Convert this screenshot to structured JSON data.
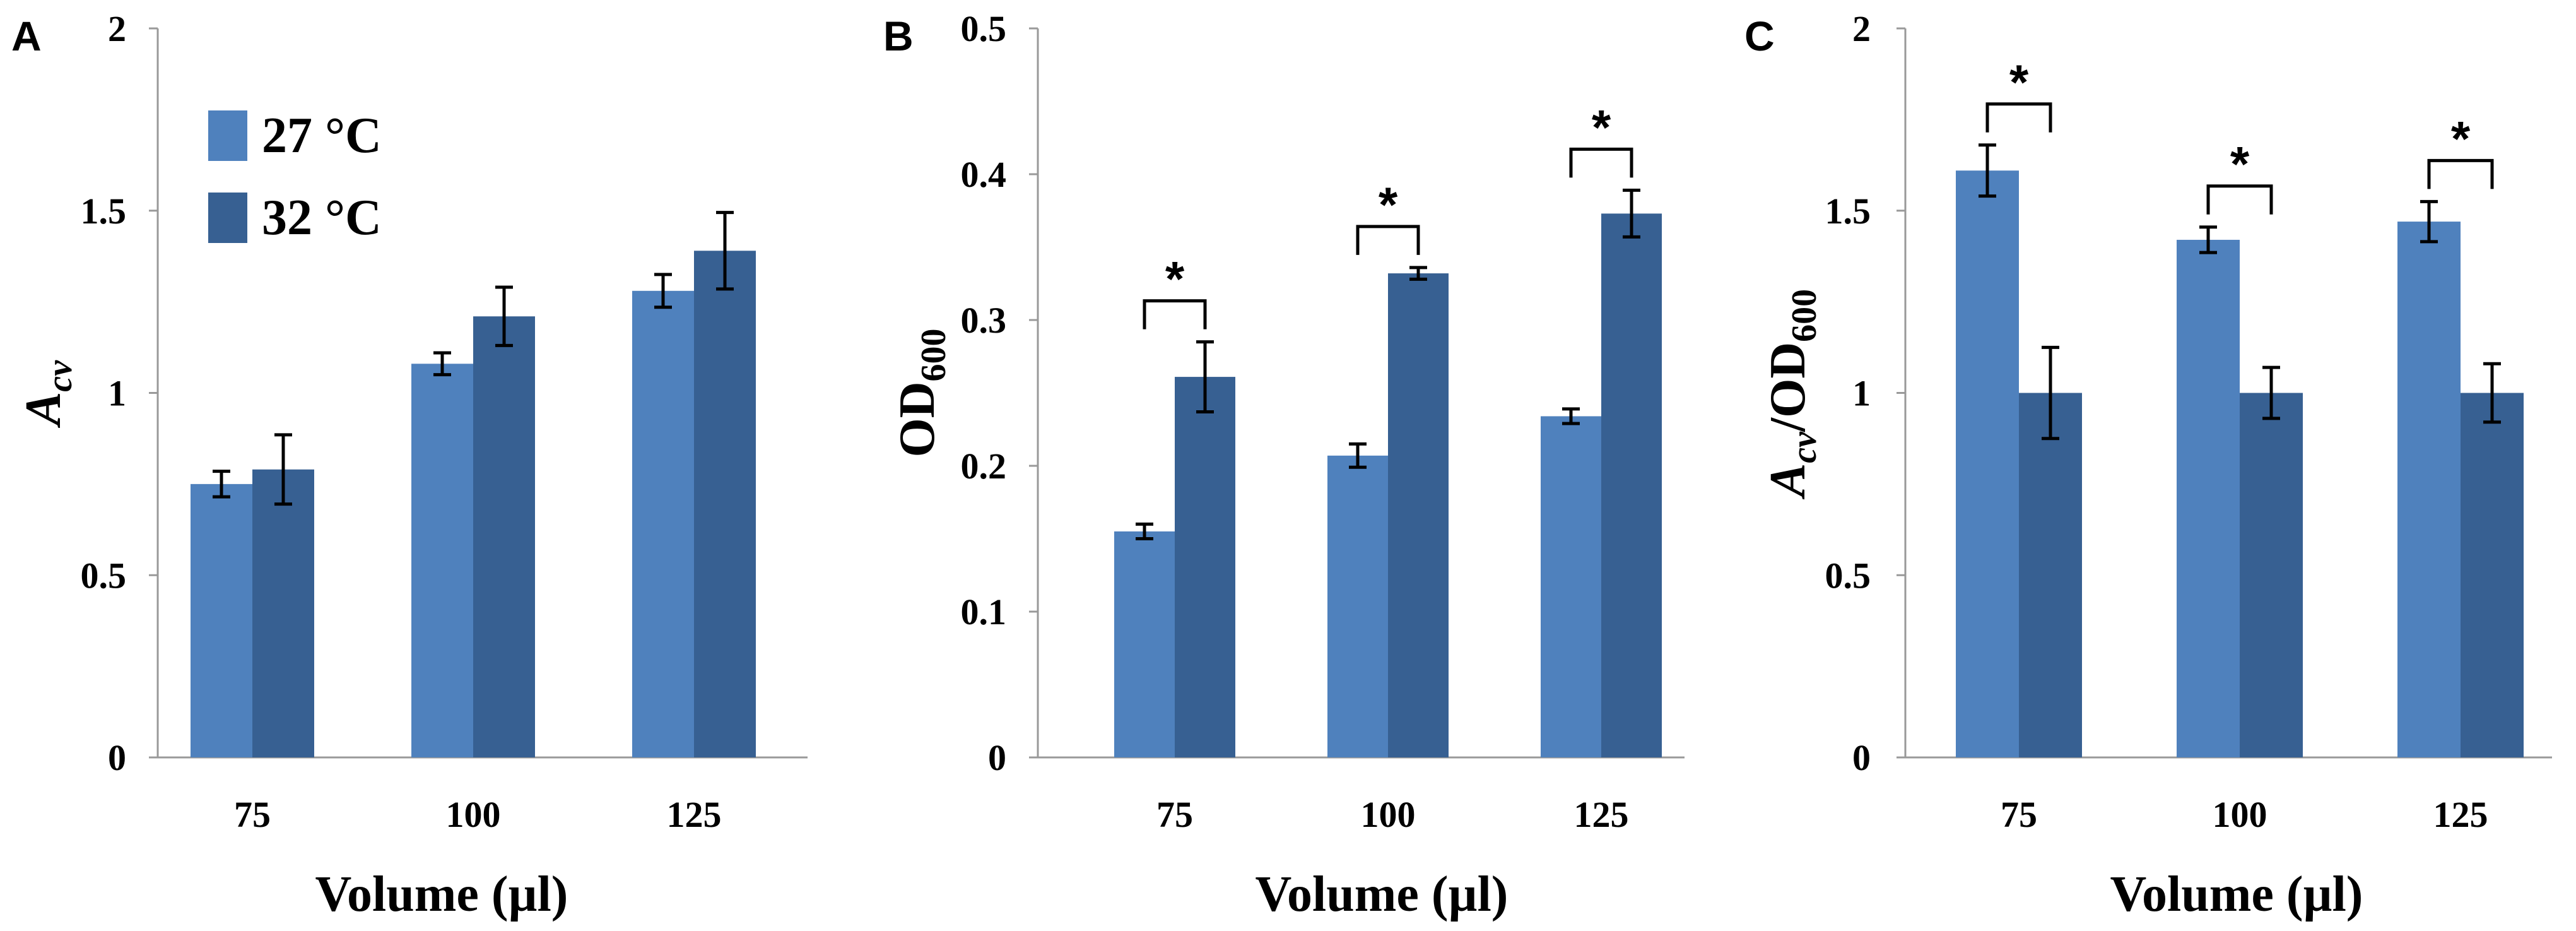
{
  "colors": {
    "series_27": "#4F81BD",
    "series_32": "#376092"
  },
  "legend": {
    "items": [
      "27 °C",
      "32 °C"
    ]
  },
  "chart_data": [
    {
      "panel_letter": "A",
      "type": "bar",
      "categories": [
        "75",
        "100",
        "125"
      ],
      "xlabel": "Volume (µl)",
      "ylabel": {
        "main": "A",
        "sub": "cv",
        "rest": ""
      },
      "ylim": [
        0,
        2
      ],
      "yticks": [
        0,
        0.5,
        1,
        1.5,
        2
      ],
      "ytick_labels": [
        "0",
        "0.5",
        "1",
        "1.5",
        "2"
      ],
      "series": [
        {
          "name": "27 °C",
          "values": [
            0.75,
            1.08,
            1.28
          ],
          "errors": [
            0.035,
            0.03,
            0.045
          ]
        },
        {
          "name": "32 °C",
          "values": [
            0.79,
            1.21,
            1.39
          ],
          "errors": [
            0.095,
            0.08,
            0.105
          ]
        }
      ],
      "significance": []
    },
    {
      "panel_letter": "B",
      "type": "bar",
      "categories": [
        "75",
        "100",
        "125"
      ],
      "xlabel": "Volume (µl)",
      "ylabel": {
        "main": "OD",
        "sub": "600",
        "rest": ""
      },
      "ylim": [
        0,
        0.5
      ],
      "yticks": [
        0,
        0.1,
        0.2,
        0.3,
        0.4,
        0.5
      ],
      "ytick_labels": [
        "0",
        "0.1",
        "0.2",
        "0.3",
        "0.4",
        "0.5"
      ],
      "series": [
        {
          "name": "27 °C",
          "values": [
            0.155,
            0.207,
            0.234
          ],
          "errors": [
            0.005,
            0.008,
            0.005
          ]
        },
        {
          "name": "32 °C",
          "values": [
            0.261,
            0.332,
            0.373
          ],
          "errors": [
            0.024,
            0.004,
            0.016
          ]
        }
      ],
      "significance": [
        "*",
        "*",
        "*"
      ]
    },
    {
      "panel_letter": "C",
      "type": "bar",
      "categories": [
        "75",
        "100",
        "125"
      ],
      "xlabel": "Volume (µl)",
      "ylabel": {
        "main": "A",
        "sub": "cv",
        "rest": "/OD",
        "sub2": "600"
      },
      "ylim": [
        0,
        2
      ],
      "yticks": [
        0,
        0.5,
        1,
        1.5,
        2
      ],
      "ytick_labels": [
        "0",
        "0.5",
        "1",
        "1.5",
        "2"
      ],
      "series": [
        {
          "name": "27 °C",
          "values": [
            1.61,
            1.42,
            1.47
          ],
          "errors": [
            0.07,
            0.035,
            0.055
          ]
        },
        {
          "name": "32 °C",
          "values": [
            1.0,
            1.0,
            1.0
          ],
          "errors": [
            0.125,
            0.07,
            0.08
          ]
        }
      ],
      "significance": [
        "*",
        "*",
        "*"
      ]
    }
  ]
}
